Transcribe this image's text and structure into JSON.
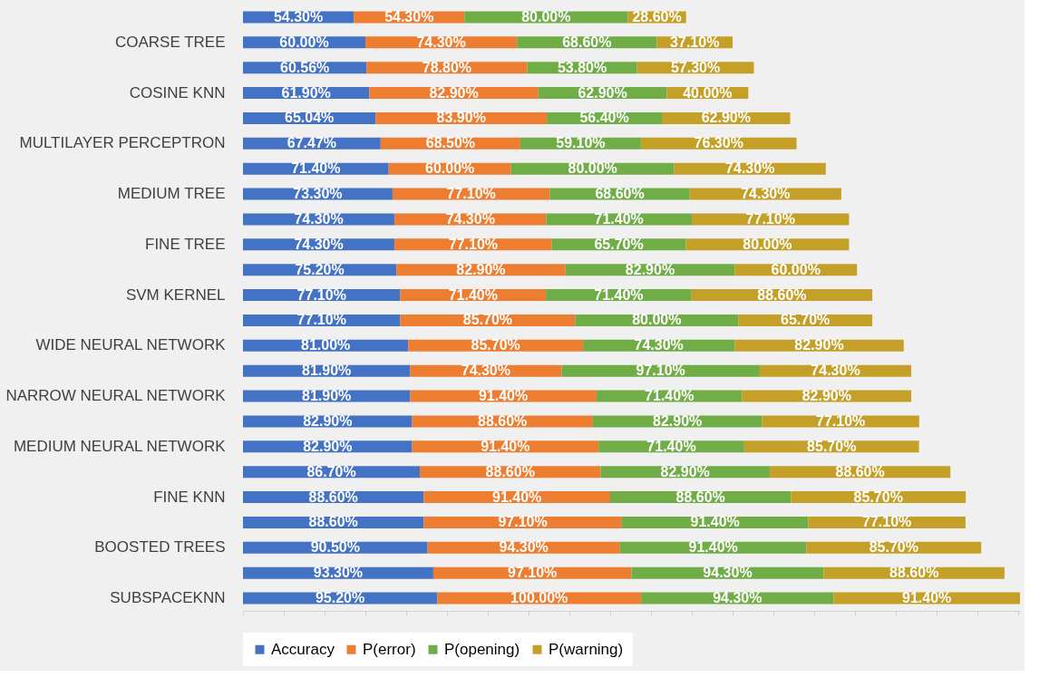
{
  "chart_data": {
    "type": "bar",
    "orientation": "horizontal",
    "stacked": true,
    "legend": "bottom",
    "tick_labels": "y",
    "categories": [
      null,
      "COARSE TREE",
      null,
      "COSINE KNN",
      null,
      "MULTILAYER PERCEPTRON",
      null,
      "MEDIUM TREE",
      null,
      "FINE TREE",
      null,
      "SVM KERNEL",
      null,
      "WIDE NEURAL NETWORK",
      null,
      "NARROW NEURAL NETWORK",
      null,
      "MEDIUM NEURAL NETWORK",
      null,
      "FINE KNN",
      null,
      "BOOSTED TREES",
      null,
      "SUBSPACEKNN"
    ],
    "series": [
      {
        "name": "Accuracy",
        "color": "#4472c4",
        "values": [
          54.3,
          60.0,
          60.56,
          61.9,
          65.04,
          67.47,
          71.4,
          73.3,
          74.3,
          74.3,
          75.2,
          77.1,
          77.1,
          81.0,
          81.9,
          81.9,
          82.9,
          82.9,
          86.7,
          88.6,
          88.6,
          90.5,
          93.3,
          95.2
        ],
        "value_labels": [
          "54.30%",
          "60.00%",
          "60.56%",
          "61.90%",
          "65.04%",
          "67.47%",
          "71.40%",
          "73.30%",
          "74.30%",
          "74.30%",
          "75.20%",
          "77.10%",
          "77.10%",
          "81.00%",
          "81.90%",
          "81.90%",
          "82.90%",
          "82.90%",
          "86.70%",
          "88.60%",
          "88.60%",
          "90.50%",
          "93.30%",
          "95.20%"
        ]
      },
      {
        "name": "P(error)",
        "color": "#ed7d31",
        "values": [
          54.3,
          74.3,
          78.8,
          82.9,
          83.9,
          68.5,
          60.0,
          77.1,
          74.3,
          77.1,
          82.9,
          71.4,
          85.7,
          85.7,
          74.3,
          91.4,
          88.6,
          91.4,
          88.6,
          91.4,
          97.1,
          94.3,
          97.1,
          100.0
        ],
        "value_labels": [
          "54.30%",
          "74.30%",
          "78.80%",
          "82.90%",
          "83.90%",
          "68.50%",
          "60.00%",
          "77.10%",
          "74.30%",
          "77.10%",
          "82.90%",
          "71.40%",
          "85.70%",
          "85.70%",
          "74.30%",
          "91.40%",
          "88.60%",
          "91.40%",
          "88.60%",
          "91.40%",
          "97.10%",
          "94.30%",
          "97.10%",
          "100.00%"
        ]
      },
      {
        "name": "P(opening)",
        "color": "#70ad47",
        "values": [
          80.0,
          68.6,
          53.8,
          62.9,
          56.4,
          59.1,
          80.0,
          68.6,
          71.4,
          65.7,
          82.9,
          71.4,
          80.0,
          74.3,
          97.1,
          71.4,
          82.9,
          71.4,
          82.9,
          88.6,
          91.4,
          91.4,
          94.3,
          94.3
        ],
        "value_labels": [
          "80.00%",
          "68.60%",
          "53.80%",
          "62.90%",
          "56.40%",
          "59.10%",
          "80.00%",
          "68.60%",
          "71.40%",
          "65.70%",
          "82.90%",
          "71.40%",
          "80.00%",
          "74.30%",
          "97.10%",
          "71.40%",
          "82.90%",
          "71.40%",
          "82.90%",
          "88.60%",
          "91.40%",
          "91.40%",
          "94.30%",
          "94.30%"
        ]
      },
      {
        "name": "P(warning)",
        "color": "#c5a028",
        "values": [
          28.6,
          37.1,
          57.3,
          40.0,
          62.9,
          76.3,
          74.3,
          74.3,
          77.1,
          80.0,
          60.0,
          88.6,
          65.7,
          82.9,
          74.3,
          82.9,
          77.1,
          85.7,
          88.6,
          85.7,
          77.1,
          85.7,
          88.6,
          91.4
        ],
        "value_labels": [
          "28.60%",
          "37.10%",
          "57.30%",
          "40.00%",
          "62.90%",
          "76.30%",
          "74.30%",
          "74.30%",
          "77.10%",
          "80.00%",
          "60.00%",
          "88.60%",
          "65.70%",
          "82.90%",
          "74.30%",
          "82.90%",
          "77.10%",
          "85.70%",
          "88.60%",
          "85.70%",
          "77.10%",
          "85.70%",
          "88.60%",
          "91.40%"
        ]
      }
    ]
  }
}
